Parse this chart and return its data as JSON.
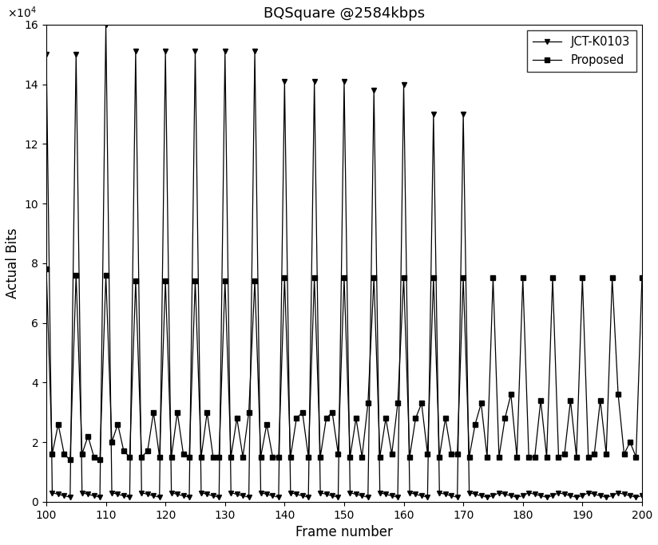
{
  "title": "BQSquare @2584kbps",
  "xlabel": "Frame number",
  "ylabel": "Actual Bits",
  "xlim": [
    100,
    200
  ],
  "ylim": [
    0,
    160000
  ],
  "legend": [
    "JCT-K0103",
    "Proposed"
  ],
  "line_color": "#000000",
  "background_color": "#ffffff",
  "jct_frames": [
    100,
    101,
    102,
    103,
    104,
    105,
    106,
    107,
    108,
    109,
    110,
    111,
    112,
    113,
    114,
    115,
    116,
    117,
    118,
    119,
    120,
    121,
    122,
    123,
    124,
    125,
    126,
    127,
    128,
    129,
    130,
    131,
    132,
    133,
    134,
    135,
    136,
    137,
    138,
    139,
    140,
    141,
    142,
    143,
    144,
    145,
    146,
    147,
    148,
    149,
    150,
    151,
    152,
    153,
    154,
    155,
    156,
    157,
    158,
    159,
    160,
    161,
    162,
    163,
    164,
    165,
    166,
    167,
    168,
    169,
    170,
    171,
    172,
    173,
    174,
    175,
    176,
    177,
    178,
    179,
    180,
    181,
    182,
    183,
    184,
    185,
    186,
    187,
    188,
    189,
    190,
    191,
    192,
    193,
    194,
    195,
    196,
    197,
    198,
    199,
    200
  ],
  "jct_values": [
    150000,
    3000,
    2500,
    2000,
    1500,
    150000,
    3000,
    2500,
    2000,
    1500,
    160000,
    3000,
    2500,
    2000,
    1500,
    151000,
    3000,
    2500,
    2000,
    1500,
    151000,
    3000,
    2500,
    2000,
    1500,
    151000,
    3000,
    2500,
    2000,
    1500,
    151000,
    3000,
    2500,
    2000,
    1500,
    151000,
    3000,
    2500,
    2000,
    1500,
    141000,
    3000,
    2500,
    2000,
    1500,
    141000,
    3000,
    2500,
    2000,
    1500,
    141000,
    3000,
    2500,
    2000,
    1500,
    138000,
    3000,
    2500,
    2000,
    1500,
    140000,
    3000,
    2500,
    2000,
    1500,
    130000,
    3000,
    2500,
    2000,
    1500,
    130000,
    3000,
    2500,
    2000,
    1500,
    2000,
    3000,
    2500,
    2000,
    1500,
    2000,
    3000,
    2500,
    2000,
    1500,
    2000,
    3000,
    2500,
    2000,
    1500,
    2000,
    3000,
    2500,
    2000,
    1500,
    2000,
    3000,
    2500,
    2000,
    1500,
    2000
  ],
  "prop_frames": [
    100,
    101,
    102,
    103,
    104,
    105,
    106,
    107,
    108,
    109,
    110,
    111,
    112,
    113,
    114,
    115,
    116,
    117,
    118,
    119,
    120,
    121,
    122,
    123,
    124,
    125,
    126,
    127,
    128,
    129,
    130,
    131,
    132,
    133,
    134,
    135,
    136,
    137,
    138,
    139,
    140,
    141,
    142,
    143,
    144,
    145,
    146,
    147,
    148,
    149,
    150,
    151,
    152,
    153,
    154,
    155,
    156,
    157,
    158,
    159,
    160,
    161,
    162,
    163,
    164,
    165,
    166,
    167,
    168,
    169,
    170,
    171,
    172,
    173,
    174,
    175,
    176,
    177,
    178,
    179,
    180,
    181,
    182,
    183,
    184,
    185,
    186,
    187,
    188,
    189,
    190,
    191,
    192,
    193,
    194,
    195,
    196,
    197,
    198,
    199,
    200
  ],
  "prop_values": [
    78000,
    16000,
    26000,
    16000,
    14000,
    76000,
    16000,
    22000,
    15000,
    14000,
    76000,
    20000,
    26000,
    17000,
    15000,
    74000,
    15000,
    17000,
    30000,
    15000,
    74000,
    15000,
    30000,
    16000,
    15000,
    74000,
    15000,
    30000,
    15000,
    15000,
    74000,
    15000,
    28000,
    15000,
    30000,
    74000,
    15000,
    26000,
    15000,
    15000,
    75000,
    15000,
    28000,
    30000,
    15000,
    75000,
    15000,
    28000,
    30000,
    16000,
    75000,
    15000,
    28000,
    15000,
    33000,
    75000,
    15000,
    28000,
    16000,
    33000,
    75000,
    15000,
    28000,
    33000,
    16000,
    75000,
    15000,
    28000,
    16000,
    16000,
    75000,
    15000,
    26000,
    33000,
    15000,
    75000,
    15000,
    28000,
    36000,
    15000,
    75000,
    15000,
    15000,
    34000,
    15000,
    75000,
    15000,
    16000,
    34000,
    15000,
    75000,
    15000,
    16000,
    34000,
    16000,
    75000,
    36000,
    16000,
    20000,
    15000,
    75000
  ]
}
